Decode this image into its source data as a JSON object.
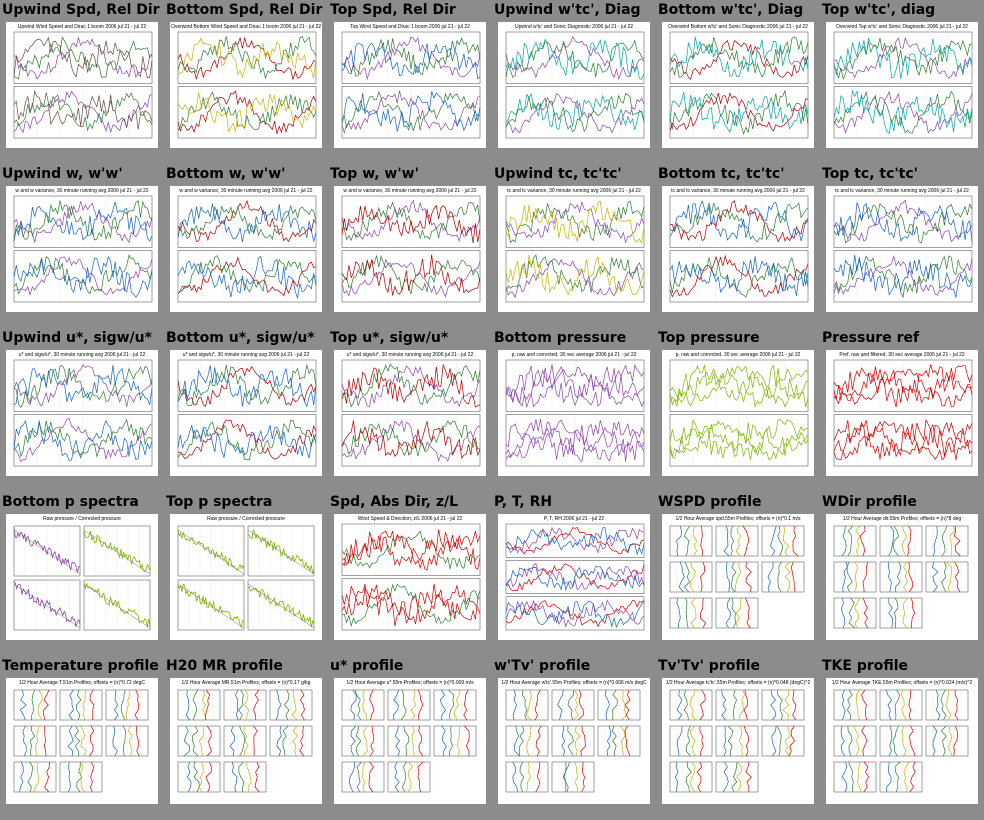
{
  "rows": [
    [
      {
        "title": "Upwind Spd, Rel Dir",
        "kind": "stack2",
        "colors": [
          "#8e44ad",
          "#2e7d32",
          "#6d4c41"
        ],
        "caption": "Upwind Wind Speed and Dirac 1 boom 2006 jul 21 - jul 22"
      },
      {
        "title": "Bottom Spd, Rel Dir",
        "kind": "stack2",
        "colors": [
          "#b00000",
          "#2e7d32",
          "#c8b400"
        ],
        "caption": "Overwind Bottom Wind Speed and Dirac 1 boom 2006 jul 21 - jul 22"
      },
      {
        "title": "Top Spd, Rel Dir",
        "kind": "stack2",
        "colors": [
          "#8e44ad",
          "#2e7d32",
          "#1565c0"
        ],
        "caption": "Top Wind Speed and Dirac 1 boom 2006 jul 21 - jul 22"
      },
      {
        "title": "Upwind w'tc', Diag",
        "kind": "stack2",
        "colors": [
          "#8e44ad",
          "#2e7d32",
          "#00a6a6"
        ],
        "caption": "Upwind w'tc' and Sonic Diagnostic 2006 jul 21 - jul 22"
      },
      {
        "title": "Bottom w'tc', Diag",
        "kind": "stack2",
        "colors": [
          "#b00000",
          "#2e7d32",
          "#00a6a6"
        ],
        "caption": "Overwind Bottom w'tc' and Sonic Diagnostic 2006 jul 21 - jul 22"
      },
      {
        "title": "Top w'tc', diag",
        "kind": "stack2",
        "colors": [
          "#8e44ad",
          "#2e7d32",
          "#00a6a6"
        ],
        "caption": "Overwind Top w'tc' and Sonic Diagnostic 2006 jul 21 - jul 22"
      }
    ],
    [
      {
        "title": "Upwind w, w'w'",
        "kind": "stack2",
        "colors": [
          "#8e44ad",
          "#2e7d32",
          "#1565c0"
        ],
        "caption": "w and w variance, 30 minute running avg 2006 jul 21 - jul 22"
      },
      {
        "title": "Bottom w, w'w'",
        "kind": "stack2",
        "colors": [
          "#b00000",
          "#2e7d32",
          "#1565c0"
        ],
        "caption": "w and w variance, 30 minute running avg 2006 jul 21 - jul 22"
      },
      {
        "title": "Top w, w'w'",
        "kind": "stack2",
        "colors": [
          "#8e44ad",
          "#2e7d32",
          "#b00000"
        ],
        "caption": "w and w variance, 30 minute running avg 2006 jul 21 - jul 22"
      },
      {
        "title": "Upwind tc, tc'tc'",
        "kind": "stack2",
        "colors": [
          "#8e44ad",
          "#2e7d32",
          "#c8b400"
        ],
        "caption": "tc and tc variance, 30 minute running avg 2006 jul 21 - jul 22"
      },
      {
        "title": "Bottom tc, tc'tc'",
        "kind": "stack2",
        "colors": [
          "#b00000",
          "#2e7d32",
          "#1565c0"
        ],
        "caption": "tc and tc variance, 30 minute running avg 2006 jul 21 - jul 22"
      },
      {
        "title": "Top tc, tc'tc'",
        "kind": "stack2",
        "colors": [
          "#8e44ad",
          "#2e7d32",
          "#1565c0"
        ],
        "caption": "tc and tc variance, 30 minute running avg 2006 jul 21 - jul 22"
      }
    ],
    [
      {
        "title": "Upwind u*, sigw/u*",
        "kind": "stack2",
        "colors": [
          "#8e44ad",
          "#2e7d32",
          "#1565c0"
        ],
        "caption": "u* and sigw/u*, 30 minute running avg 2006 jul 21 - jul 22"
      },
      {
        "title": "Bottom u*, sigw/u*",
        "kind": "stack2",
        "colors": [
          "#b00000",
          "#2e7d32",
          "#1565c0"
        ],
        "caption": "u* and sigw/u*, 30 minute running avg 2006 jul 21 - jul 22"
      },
      {
        "title": "Top u*, sigw/u*",
        "kind": "stack2",
        "colors": [
          "#8e44ad",
          "#2e7d32",
          "#b00000"
        ],
        "caption": "u* and sigw/u*, 30 minute running avg 2006 jul 21 - jul 22"
      },
      {
        "title": "Bottom pressure",
        "kind": "stack2",
        "colors": [
          "#8e44ad",
          "#8e44ad",
          "#8e44ad"
        ],
        "caption": "p, raw and corrected, 30 sec average 2006 jul 21 - jul 22"
      },
      {
        "title": "Top pressure",
        "kind": "stack2",
        "colors": [
          "#7cb800",
          "#7cb800",
          "#7cb800"
        ],
        "caption": "p, raw and corrected, 30 sec average 2006 jul 21 - jul 22"
      },
      {
        "title": "Pressure ref",
        "kind": "stack2",
        "colors": [
          "#d40000",
          "#d40000",
          "#d40000"
        ],
        "caption": "Pref, raw and filtered, 30 sec average 2006 jul 21 - jul 22"
      }
    ],
    [
      {
        "title": "Bottom p spectra",
        "kind": "quad",
        "colors": [
          "#8e44ad",
          "#7cb800",
          "#555555"
        ],
        "caption": "Raw pressure / Corrected pressure"
      },
      {
        "title": "Top p spectra",
        "kind": "quad",
        "colors": [
          "#7cb800",
          "#7cb800",
          "#555555"
        ],
        "caption": "Raw pressure / Corrected pressure"
      },
      {
        "title": "Spd, Abs Dir, z/L",
        "kind": "stack2",
        "colors": [
          "#2e7d32",
          "#d40000",
          "#d40000"
        ],
        "caption": "Wind Speed & Direction, z/L 2006 jul 21 - jul 22"
      },
      {
        "title": "P, T, RH",
        "kind": "stack3",
        "colors": [
          "#d40000",
          "#8e44ad",
          "#1565c0"
        ],
        "caption": "P, T, RH 2006 jul 21 - jul 22"
      },
      {
        "title": "WSPD profile",
        "kind": "profile",
        "colors": [
          "#1565c0",
          "#2e7d32",
          "#c8b400",
          "#d40000"
        ],
        "caption": "1/2 Hour Average spd.55m Profiles; offsets = (n)*0.1 m/s"
      },
      {
        "title": "WDir profile",
        "kind": "profile",
        "colors": [
          "#1565c0",
          "#2e7d32",
          "#c8b400",
          "#d40000"
        ],
        "caption": "1/2 Hour Average dir.55m Profiles; offsets = (n)*8 deg"
      }
    ],
    [
      {
        "title": "Temperature profile",
        "kind": "profile",
        "colors": [
          "#1565c0",
          "#2e7d32",
          "#c8b400",
          "#d40000"
        ],
        "caption": "1/2 Hour Average T.51m Profiles; offsets = (n)*0.72 degC"
      },
      {
        "title": "H20 MR profile",
        "kind": "profile",
        "colors": [
          "#1565c0",
          "#2e7d32",
          "#c8b400",
          "#d40000"
        ],
        "caption": "1/2 Hour Average MR.51m Profiles; offsets = (n)*0.17 g/kg"
      },
      {
        "title": "u* profile",
        "kind": "profile",
        "colors": [
          "#1565c0",
          "#2e7d32",
          "#c8b400",
          "#d40000"
        ],
        "caption": "1/2 Hour Average u*.55m Profiles; offsets = (n)*0.009 m/s"
      },
      {
        "title": "w'Tv' profile",
        "kind": "profile",
        "colors": [
          "#1565c0",
          "#2e7d32",
          "#c8b400",
          "#d40000"
        ],
        "caption": "1/2 Hour Average w'tc'.55m Profiles; offsets = (n)*0.006 m/s degC"
      },
      {
        "title": "Tv'Tv' profile",
        "kind": "profile",
        "colors": [
          "#1565c0",
          "#2e7d32",
          "#c8b400",
          "#d40000"
        ],
        "caption": "1/2 Hour Average tc'tc'.55m Profiles; offsets = (n)*0.048 (degC)^2"
      },
      {
        "title": "TKE profile",
        "kind": "profile",
        "colors": [
          "#1565c0",
          "#2e7d32",
          "#c8b400",
          "#d40000"
        ],
        "caption": "1/2 Hour Average TKE.55m Profiles; offsets = (n)*0.024 (m/s)^2"
      }
    ]
  ]
}
